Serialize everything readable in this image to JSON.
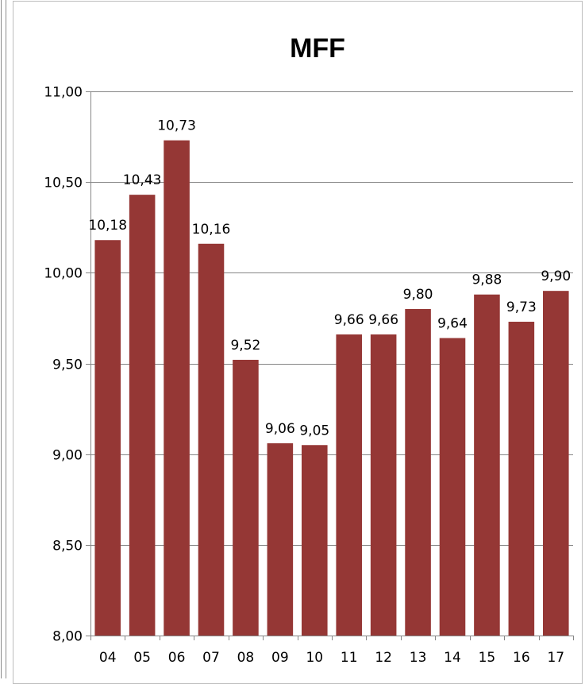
{
  "chart_data": {
    "type": "bar",
    "title": "MFF",
    "xlabel": "",
    "ylabel": "",
    "categories": [
      "04",
      "05",
      "06",
      "07",
      "08",
      "09",
      "10",
      "11",
      "12",
      "13",
      "14",
      "15",
      "16",
      "17"
    ],
    "values": [
      10.18,
      10.43,
      10.73,
      10.16,
      9.52,
      9.06,
      9.05,
      9.66,
      9.66,
      9.8,
      9.64,
      9.88,
      9.73,
      9.9
    ],
    "data_labels": [
      "10,18",
      "10,43",
      "10,73",
      "10,16",
      "9,52",
      "9,06",
      "9,05",
      "9,66",
      "9,66",
      "9,80",
      "9,64",
      "9,88",
      "9,73",
      "9,90"
    ],
    "ylim": [
      8.0,
      11.0
    ],
    "y_ticks": [
      8.0,
      8.5,
      9.0,
      9.5,
      10.0,
      10.5,
      11.0
    ],
    "y_tick_labels": [
      "8,00",
      "8,50",
      "9,00",
      "9,50",
      "10,00",
      "10,50",
      "11,00"
    ],
    "grid": true,
    "legend": "none",
    "colors": {
      "bar": "#953735",
      "grid": "#868686",
      "axis": "#868686"
    }
  }
}
